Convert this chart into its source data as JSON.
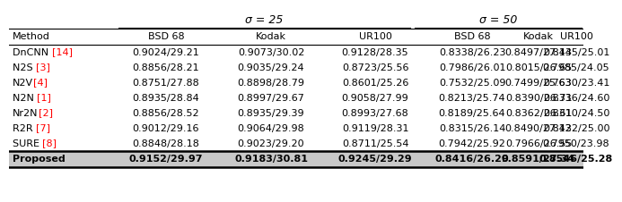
{
  "title_sigma25": "σ = 25",
  "title_sigma50": "σ = 50",
  "col_headers": [
    "Method",
    "BSD 68",
    "Kodak",
    "UR100",
    "BSD 68",
    "Kodak",
    "UR100"
  ],
  "methods": [
    {
      "name_black": "DnCNN ",
      "name_red": "[14]",
      "vals": [
        "0.9024/29.21",
        "0.9073/30.02",
        "0.9128/28.35",
        "0.8338/26.23",
        "0.8497/27.14",
        "0.8435/25.01"
      ]
    },
    {
      "name_black": "N2S ",
      "name_red": "[3]",
      "vals": [
        "0.8856/28.21",
        "0.9035/29.24",
        "0.8723/25.56",
        "0.7986/26.01",
        "0.8015/26.65",
        "0.7985/24.05"
      ]
    },
    {
      "name_black": "N2V",
      "name_red": "[4]",
      "vals": [
        "0.8751/27.88",
        "0.8898/28.79",
        "0.8601/25.26",
        "0.7532/25.09",
        "0.7499/25.63",
        "0.7630/23.41"
      ]
    },
    {
      "name_black": "N2N ",
      "name_red": "[1]",
      "vals": [
        "0.8935/28.84",
        "0.8997/29.67",
        "0.9058/27.99",
        "0.8213/25.74",
        "0.8390/26.71",
        "0.8336/24.60"
      ]
    },
    {
      "name_black": "Nr2N",
      "name_red": "[2]",
      "vals": [
        "0.8856/28.52",
        "0.8935/29.39",
        "0.8993/27.68",
        "0.8189/25.64",
        "0.8362/26.61",
        "0.8310/24.50"
      ]
    },
    {
      "name_black": "R2R ",
      "name_red": "[7]",
      "vals": [
        "0.9012/29.16",
        "0.9064/29.98",
        "0.9119/28.31",
        "0.8315/26.14",
        "0.8490/27.12",
        "0.8432/25.00"
      ]
    },
    {
      "name_black": "SURE ",
      "name_red": "[8]",
      "vals": [
        "0.8848/28.18",
        "0.9023/29.20",
        "0.8711/25.54",
        "0.7942/25.92",
        "0.7966/26.55",
        "0.7950/23.98"
      ]
    }
  ],
  "proposed": {
    "name": "Proposed",
    "vals": [
      "0.9152/29.97",
      "0.9183/30.81",
      "0.9245/29.29",
      "0.8416/26.29",
      "0.8591/27.34",
      "0.8546/25.28"
    ]
  },
  "background": "#ffffff",
  "text_color": "#000000",
  "highlight_bg": "#c8c8c8",
  "fontsize": 8.0,
  "sigma_fontsize": 9.0
}
